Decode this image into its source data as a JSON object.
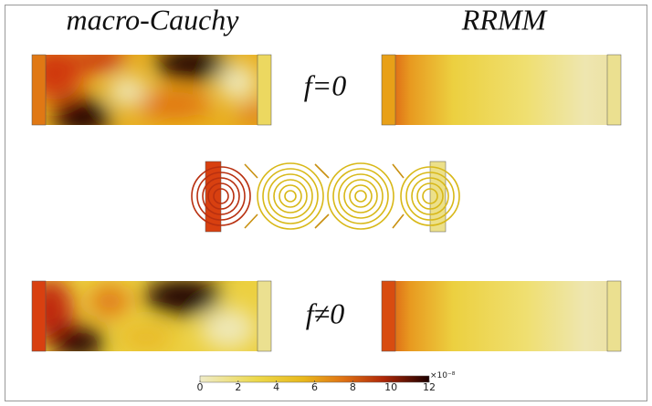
{
  "columns": [
    "macro-Cauchy",
    "RRMM"
  ],
  "rows": [
    "f=0",
    "f≠0"
  ],
  "colorbar": {
    "lim": [
      0,
      12
    ],
    "ticks": [
      0,
      2,
      4,
      6,
      8,
      10,
      12
    ],
    "multiplier": "×10⁻⁸"
  }
}
